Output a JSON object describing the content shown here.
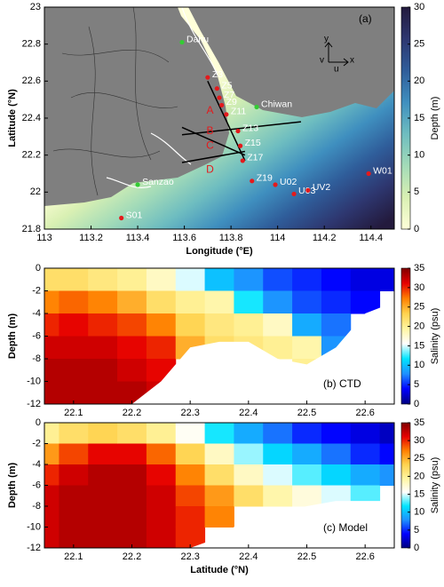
{
  "chart_data": [
    {
      "type": "map",
      "annotation": "(a)",
      "xlabel": "Longitude (°E)",
      "ylabel": "Latitude (°N)",
      "xlim": [
        113,
        114.5
      ],
      "xticks": [
        113,
        113.2,
        113.4,
        113.6,
        113.8,
        114,
        114.2,
        114.4
      ],
      "ylim": [
        21.8,
        23
      ],
      "yticks": [
        21.8,
        22,
        22.2,
        22.4,
        22.6,
        22.8,
        23
      ],
      "colorbar": {
        "label": "Depth (m)",
        "lim": [
          0,
          30
        ],
        "ticks": [
          0,
          5,
          10,
          15,
          20,
          25,
          30
        ],
        "colormap": [
          "#ffffd9",
          "#d9f0b3",
          "#a3dbb8",
          "#6ebdc0",
          "#3f8fbf",
          "#2f5d9a",
          "#2e3770",
          "#231a3d"
        ]
      },
      "land_color": "#7f7f7f",
      "compass": {
        "x": "x",
        "y": "y",
        "u": "u",
        "v": "v"
      },
      "stations": [
        {
          "name": "Dahu",
          "lon": 113.59,
          "lat": 22.81,
          "color": "#33cc33"
        },
        {
          "name": "Z3",
          "lon": 113.7,
          "lat": 22.62,
          "color": "#e41a1c"
        },
        {
          "name": "Z5",
          "lon": 113.74,
          "lat": 22.56,
          "color": "#e41a1c"
        },
        {
          "name": "Z7",
          "lon": 113.75,
          "lat": 22.51,
          "color": "#e41a1c"
        },
        {
          "name": "Z9",
          "lon": 113.76,
          "lat": 22.47,
          "color": "#e41a1c"
        },
        {
          "name": "Z11",
          "lon": 113.78,
          "lat": 22.42,
          "color": "#e41a1c"
        },
        {
          "name": "Chiwan",
          "lon": 113.91,
          "lat": 22.46,
          "color": "#33cc33"
        },
        {
          "name": "Z13",
          "lon": 113.83,
          "lat": 22.33,
          "color": "#e41a1c"
        },
        {
          "name": "Z15",
          "lon": 113.84,
          "lat": 22.25,
          "color": "#e41a1c"
        },
        {
          "name": "Z17",
          "lon": 113.85,
          "lat": 22.17,
          "color": "#e41a1c"
        },
        {
          "name": "Z19",
          "lon": 113.89,
          "lat": 22.06,
          "color": "#e41a1c"
        },
        {
          "name": "U02",
          "lon": 113.99,
          "lat": 22.04,
          "color": "#e41a1c"
        },
        {
          "name": "U03",
          "lon": 114.07,
          "lat": 21.99,
          "color": "#e41a1c"
        },
        {
          "name": "UV2",
          "lon": 114.13,
          "lat": 22.01,
          "color": "#e41a1c"
        },
        {
          "name": "W01",
          "lon": 114.39,
          "lat": 22.1,
          "color": "#e41a1c"
        },
        {
          "name": "Sanzao",
          "lon": 113.4,
          "lat": 22.04,
          "color": "#33cc33"
        },
        {
          "name": "S01",
          "lon": 113.33,
          "lat": 21.86,
          "color": "#e41a1c"
        }
      ],
      "transects": [
        [
          [
            113.7,
            22.6
          ],
          [
            113.86,
            22.17
          ]
        ],
        [
          [
            113.59,
            22.31
          ],
          [
            114.1,
            22.38
          ]
        ],
        [
          [
            113.59,
            22.35
          ],
          [
            113.86,
            22.2
          ]
        ],
        [
          [
            113.59,
            22.16
          ],
          [
            113.86,
            22.22
          ]
        ]
      ],
      "section_labels": [
        {
          "text": "A",
          "lon": 113.71,
          "lat": 22.44
        },
        {
          "text": "B",
          "lon": 113.71,
          "lat": 22.33
        },
        {
          "text": "C",
          "lon": 113.71,
          "lat": 22.25
        },
        {
          "text": "D",
          "lon": 113.71,
          "lat": 22.12
        }
      ]
    },
    {
      "type": "section",
      "annotation": "(b) CTD",
      "xlabel": null,
      "ylabel": "Depth (m)",
      "xlim": [
        22.05,
        22.65
      ],
      "xticks": [
        22.1,
        22.2,
        22.3,
        22.4,
        22.5,
        22.6
      ],
      "ylim": [
        -12,
        0
      ],
      "yticks": [
        0,
        -2,
        -4,
        -6,
        -8,
        -10,
        -12
      ],
      "colorbar": {
        "label": "Salinity (psu)",
        "lim": [
          0,
          35
        ],
        "ticks": [
          0,
          5,
          10,
          15,
          20,
          25,
          30,
          35
        ],
        "colormap": [
          "#000080",
          "#0000ff",
          "#1e90ff",
          "#00e5ff",
          "#ffffff",
          "#fff5a0",
          "#ffd24d",
          "#ff7f00",
          "#e60000",
          "#800000"
        ]
      },
      "lat": [
        22.05,
        22.1,
        22.15,
        22.2,
        22.25,
        22.3,
        22.35,
        22.4,
        22.45,
        22.5,
        22.55,
        22.6,
        22.65
      ],
      "depth": [
        -1,
        -3,
        -5,
        -7,
        -9,
        -11
      ],
      "values": [
        [
          22,
          27,
          30,
          32,
          33,
          33
        ],
        [
          22,
          28,
          31,
          32,
          33,
          33
        ],
        [
          21,
          27,
          30,
          32,
          33,
          33
        ],
        [
          20,
          25,
          29,
          31,
          32,
          33
        ],
        [
          18,
          22,
          27,
          30,
          31,
          32
        ],
        [
          15,
          20,
          23,
          25,
          null,
          null
        ],
        [
          10,
          19,
          21,
          22,
          null,
          null
        ],
        [
          8,
          12,
          20,
          21,
          null,
          null
        ],
        [
          6,
          8,
          18,
          20,
          null,
          null
        ],
        [
          5,
          6,
          9,
          19,
          20,
          null
        ],
        [
          4,
          5,
          7,
          8,
          null,
          null
        ],
        [
          3,
          4,
          null,
          null,
          null,
          null
        ],
        [
          3,
          null,
          null,
          null,
          null,
          null
        ]
      ],
      "bottom": [
        -12,
        -12,
        -12,
        -12,
        -10,
        -7,
        -6.5,
        -6.5,
        -8,
        -8.5,
        -7,
        -4,
        -3
      ]
    },
    {
      "type": "section",
      "annotation": "(c) Model",
      "xlabel": "Latitude (°N)",
      "ylabel": "Depth (m)",
      "xlim": [
        22.05,
        22.65
      ],
      "xticks": [
        22.1,
        22.2,
        22.3,
        22.4,
        22.5,
        22.6
      ],
      "ylim": [
        -12,
        0
      ],
      "yticks": [
        0,
        -2,
        -4,
        -6,
        -8,
        -10,
        -12
      ],
      "colorbar": {
        "label": "Salinity (psu)",
        "lim": [
          0,
          35
        ],
        "ticks": [
          0,
          5,
          10,
          15,
          20,
          25,
          30,
          35
        ],
        "colormap": [
          "#000080",
          "#0000ff",
          "#1e90ff",
          "#00e5ff",
          "#ffffff",
          "#fff5a0",
          "#ffd24d",
          "#ff7f00",
          "#e60000",
          "#800000"
        ]
      },
      "lat": [
        22.05,
        22.1,
        22.15,
        22.2,
        22.25,
        22.3,
        22.35,
        22.4,
        22.45,
        22.5,
        22.55,
        22.6,
        22.65
      ],
      "depth": [
        -1,
        -3,
        -5,
        -7,
        -9,
        -11
      ],
      "values": [
        [
          20,
          26,
          30,
          32,
          32,
          32
        ],
        [
          22,
          29,
          32,
          33,
          33,
          33
        ],
        [
          23,
          31,
          33,
          33,
          33,
          33
        ],
        [
          22,
          31,
          33,
          33,
          33,
          33
        ],
        [
          20,
          28,
          31,
          32,
          32,
          32
        ],
        [
          16,
          23,
          27,
          29,
          30,
          30
        ],
        [
          12,
          18,
          22,
          26,
          27,
          null
        ],
        [
          9,
          14,
          18,
          22,
          null,
          null
        ],
        [
          7,
          11,
          15,
          19,
          null,
          null
        ],
        [
          5,
          9,
          13,
          17,
          null,
          null
        ],
        [
          4,
          7,
          11,
          15,
          null,
          null
        ],
        [
          3,
          5,
          9,
          13,
          null,
          null
        ],
        [
          2,
          4,
          8,
          null,
          null,
          null
        ]
      ],
      "bottom": [
        -12,
        -12,
        -12,
        -12,
        -12,
        -12,
        -11,
        -9,
        -8.5,
        -8,
        -7.5,
        -7.5,
        -7.5
      ]
    }
  ]
}
